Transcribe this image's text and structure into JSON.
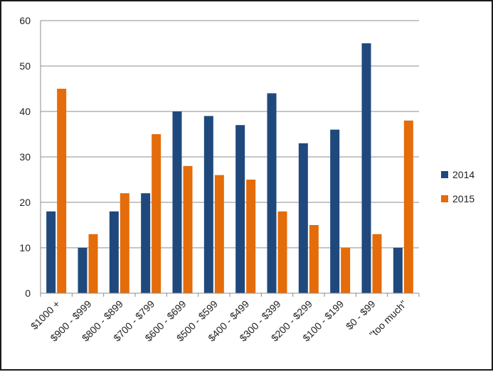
{
  "chart_data": {
    "type": "bar",
    "title": "",
    "xlabel": "",
    "ylabel": "",
    "ylim": [
      0,
      60
    ],
    "yticks": [
      0,
      10,
      20,
      30,
      40,
      50,
      60
    ],
    "grid": true,
    "legend_position": "right",
    "categories": [
      "$1000 +",
      "$900 - $999",
      "$800 - $899",
      "$700 - $799",
      "$600 - $699",
      "$500 - $599",
      "$400 - $499",
      "$300 - $399",
      "$200 - $299",
      "$100 - $199",
      "$0 - $99",
      "\"too much\""
    ],
    "series": [
      {
        "name": "2014",
        "color": "#1f497d",
        "values": [
          18,
          10,
          18,
          22,
          40,
          39,
          37,
          44,
          33,
          36,
          55,
          10
        ]
      },
      {
        "name": "2015",
        "color": "#e46c0a",
        "values": [
          45,
          13,
          22,
          35,
          28,
          26,
          25,
          18,
          15,
          10,
          13,
          38
        ]
      }
    ]
  }
}
